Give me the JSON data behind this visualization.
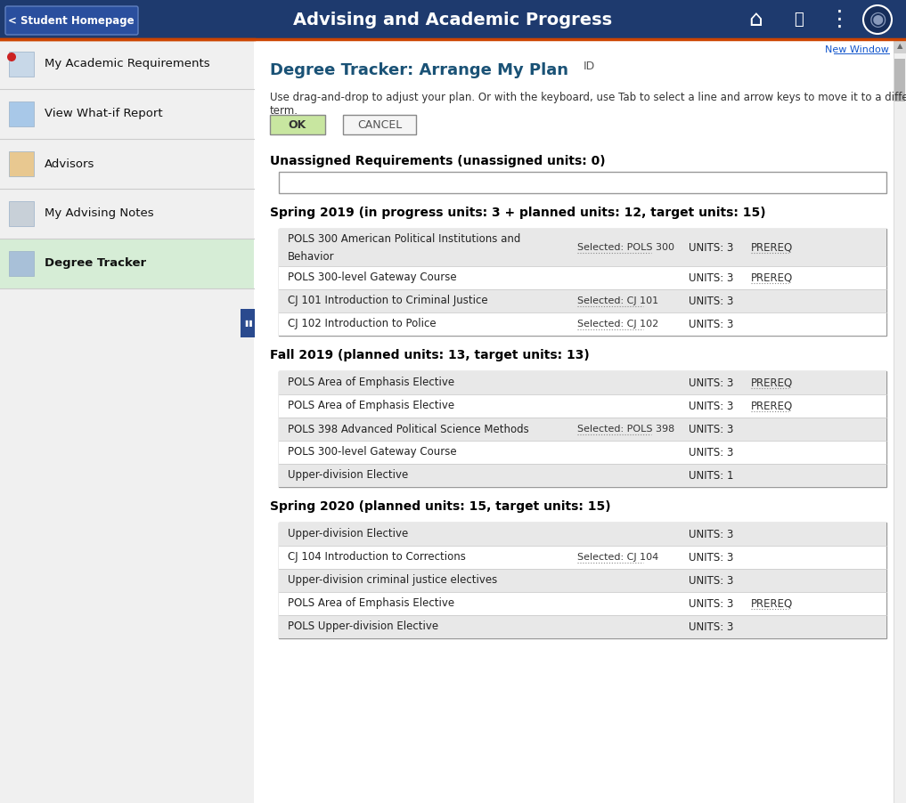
{
  "nav_bg": "#1e3a6e",
  "nav_title": "Advising and Academic Progress",
  "nav_back_btn": "< Student Homepage",
  "sidebar_active_bg": "#d6edd6",
  "sidebar_items": [
    "My Academic Requirements",
    "View What-if Report",
    "Advisors",
    "My Advising Notes",
    "Degree Tracker"
  ],
  "sidebar_active_index": 4,
  "main_title": "Degree Tracker: Arrange My Plan",
  "main_title_color": "#1a5276",
  "id_label": "ID",
  "instruction_line1": "Use drag-and-drop to adjust your plan. Or with the keyboard, use Tab to select a line and arrow keys to move it to a different",
  "instruction_line2": "term.",
  "ok_btn": "OK",
  "cancel_btn": "CANCEL",
  "new_window_link": "New Window",
  "section_unassigned": "Unassigned Requirements (unassigned units: 0)",
  "section_spring2019": "Spring 2019 (in progress units: 3 + planned units: 12, target units: 15)",
  "section_fall2019": "Fall 2019 (planned units: 13, target units: 13)",
  "section_spring2020": "Spring 2020 (planned units: 15, target units: 15)",
  "spring2019_rows": [
    {
      "course": "POLS 300 American Political Institutions and",
      "course2": "Behavior",
      "selected": "Selected: POLS 300",
      "units": "UNITS: 3",
      "prereq": "PREREQ",
      "shaded": true,
      "twolines": true
    },
    {
      "course": "POLS 300-level Gateway Course",
      "course2": "",
      "selected": "",
      "units": "UNITS: 3",
      "prereq": "PREREQ",
      "shaded": false,
      "twolines": false
    },
    {
      "course": "CJ 101 Introduction to Criminal Justice",
      "course2": "",
      "selected": "Selected: CJ 101",
      "units": "UNITS: 3",
      "prereq": "",
      "shaded": true,
      "twolines": false
    },
    {
      "course": "CJ 102 Introduction to Police",
      "course2": "",
      "selected": "Selected: CJ 102",
      "units": "UNITS: 3",
      "prereq": "",
      "shaded": false,
      "twolines": false
    }
  ],
  "fall2019_rows": [
    {
      "course": "POLS Area of Emphasis Elective",
      "course2": "",
      "selected": "",
      "units": "UNITS: 3",
      "prereq": "PREREQ",
      "shaded": true,
      "twolines": false
    },
    {
      "course": "POLS Area of Emphasis Elective",
      "course2": "",
      "selected": "",
      "units": "UNITS: 3",
      "prereq": "PREREQ",
      "shaded": false,
      "twolines": false
    },
    {
      "course": "POLS 398 Advanced Political Science Methods",
      "course2": "",
      "selected": "Selected: POLS 398",
      "units": "UNITS: 3",
      "prereq": "",
      "shaded": true,
      "twolines": false
    },
    {
      "course": "POLS 300-level Gateway Course",
      "course2": "",
      "selected": "",
      "units": "UNITS: 3",
      "prereq": "",
      "shaded": false,
      "twolines": false
    },
    {
      "course": "Upper-division Elective",
      "course2": "",
      "selected": "",
      "units": "UNITS: 1",
      "prereq": "",
      "shaded": true,
      "twolines": false
    }
  ],
  "spring2020_rows": [
    {
      "course": "Upper-division Elective",
      "course2": "",
      "selected": "",
      "units": "UNITS: 3",
      "prereq": "",
      "shaded": true,
      "twolines": false
    },
    {
      "course": "CJ 104 Introduction to Corrections",
      "course2": "",
      "selected": "Selected: CJ 104",
      "units": "UNITS: 3",
      "prereq": "",
      "shaded": false,
      "twolines": false
    },
    {
      "course": "Upper-division criminal justice electives",
      "course2": "",
      "selected": "",
      "units": "UNITS: 3",
      "prereq": "",
      "shaded": true,
      "twolines": false
    },
    {
      "course": "POLS Area of Emphasis Elective",
      "course2": "",
      "selected": "",
      "units": "UNITS: 3",
      "prereq": "PREREQ",
      "shaded": false,
      "twolines": false
    },
    {
      "course": "POLS Upper-division Elective",
      "course2": "",
      "selected": "",
      "units": "UNITS: 3",
      "prereq": "",
      "shaded": true,
      "twolines": false
    }
  ],
  "header_separator_color": "#cc4400",
  "row_shaded_color": "#e8e8e8",
  "row_normal_color": "#ffffff",
  "pause_btn_color": "#2a4a8e"
}
